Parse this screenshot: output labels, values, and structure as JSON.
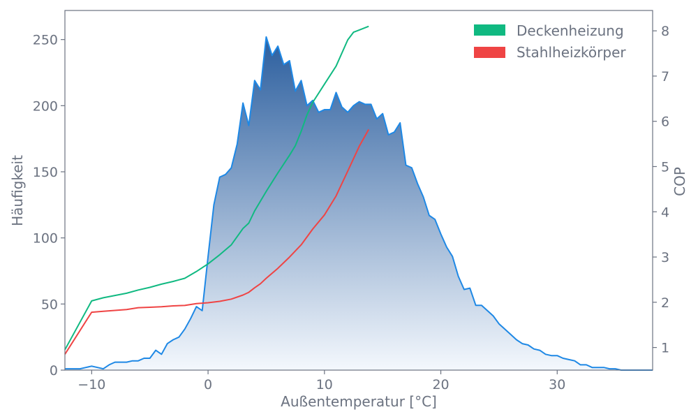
{
  "chart_data": {
    "type": "area",
    "title": "",
    "xlabel": "Außentemperatur [°C]",
    "ylabel": "Häufigkeit",
    "y2label": "COP",
    "xlim": [
      -12.3,
      38.2
    ],
    "ylim": [
      0,
      272
    ],
    "y2lim": [
      0.5,
      8.45
    ],
    "xticks": [
      -10,
      0,
      10,
      20,
      30
    ],
    "xtick_labels": [
      "−10",
      "0",
      "10",
      "20",
      "30"
    ],
    "yticks": [
      0,
      50,
      100,
      150,
      200,
      250
    ],
    "y2ticks": [
      1,
      2,
      3,
      4,
      5,
      6,
      7,
      8
    ],
    "grid": false,
    "legend_position": "top-right",
    "colors": {
      "area_top": "#2b5e9e",
      "area_bottom": "#f4f8fd",
      "frequency_line": "#1e88e5",
      "deckenheizung": "#10b981",
      "stahlheizkoerper": "#ef4444",
      "axis": "#6b7280"
    },
    "frequency": {
      "name": "Häufigkeit",
      "x": [
        -12.3,
        -12,
        -11.5,
        -11,
        -10.5,
        -10,
        -9.5,
        -9,
        -8.5,
        -8,
        -7.5,
        -7,
        -6.5,
        -6,
        -5.5,
        -5,
        -4.5,
        -4,
        -3.5,
        -3,
        -2.5,
        -2,
        -1.5,
        -1,
        -0.5,
        0,
        0.5,
        1,
        1.5,
        2,
        2.5,
        3,
        3.5,
        4,
        4.5,
        5,
        5.5,
        6,
        6.5,
        7,
        7.5,
        8,
        8.5,
        9,
        9.5,
        10,
        10.5,
        11,
        11.5,
        12,
        12.5,
        13,
        13.5,
        14,
        14.5,
        15,
        15.5,
        16,
        16.5,
        17,
        17.5,
        18,
        18.5,
        19,
        19.5,
        20,
        20.5,
        21,
        21.5,
        22,
        22.5,
        23,
        23.5,
        24,
        24.5,
        25,
        25.5,
        26,
        26.5,
        27,
        27.5,
        28,
        28.5,
        29,
        29.5,
        30,
        30.5,
        31,
        31.5,
        32,
        32.5,
        33,
        33.5,
        34,
        34.5,
        35,
        35.5,
        36,
        36.5,
        37,
        37.5,
        38,
        38.2
      ],
      "values": [
        1,
        1,
        1,
        1,
        2,
        3,
        2,
        1,
        4,
        6,
        6,
        6,
        7,
        7,
        9,
        9,
        15,
        12,
        20,
        23,
        25,
        31,
        39,
        48,
        45,
        86,
        125,
        146,
        148,
        153,
        171,
        202,
        185,
        219,
        212,
        252,
        238,
        245,
        231,
        234,
        211,
        219,
        200,
        204,
        195,
        197,
        197,
        210,
        199,
        195,
        200,
        203,
        201,
        201,
        190,
        194,
        178,
        180,
        187,
        155,
        153,
        141,
        131,
        117,
        114,
        103,
        93,
        86,
        71,
        61,
        62,
        49,
        49,
        45,
        41,
        35,
        31,
        27,
        23,
        20,
        19,
        16,
        15,
        12,
        11,
        11,
        9,
        8,
        7,
        4,
        4,
        2,
        2,
        2,
        1,
        1,
        0,
        0,
        0,
        0,
        0,
        0,
        0
      ]
    },
    "series": [
      {
        "name": "Deckenheizung",
        "x": [
          -12.3,
          -10,
          -9,
          -8,
          -7,
          -6,
          -5,
          -4,
          -3,
          -2,
          -1,
          0,
          1,
          2,
          3,
          3.5,
          4,
          5,
          6,
          7,
          7.5,
          8,
          8.5,
          9,
          10,
          11,
          12,
          12.5,
          13,
          13.8
        ],
        "values": [
          0.95,
          2.03,
          2.1,
          2.15,
          2.2,
          2.27,
          2.33,
          2.4,
          2.46,
          2.53,
          2.68,
          2.85,
          3.05,
          3.27,
          3.63,
          3.75,
          4.02,
          4.45,
          4.86,
          5.25,
          5.46,
          5.78,
          6.14,
          6.42,
          6.82,
          7.22,
          7.8,
          7.97,
          8.02,
          8.1
        ]
      },
      {
        "name": "Stahlheizkörper",
        "x": [
          -12.3,
          -10,
          -9,
          -8,
          -7,
          -6,
          -5,
          -4,
          -3,
          -2,
          -1,
          0,
          1,
          2,
          3,
          3.5,
          4,
          4.5,
          5,
          6,
          7,
          8,
          9,
          10,
          11,
          12,
          13,
          13.8
        ],
        "values": [
          0.85,
          1.78,
          1.8,
          1.82,
          1.84,
          1.88,
          1.89,
          1.9,
          1.92,
          1.93,
          1.97,
          1.99,
          2.02,
          2.07,
          2.16,
          2.22,
          2.32,
          2.41,
          2.53,
          2.75,
          3.0,
          3.27,
          3.62,
          3.93,
          4.35,
          4.9,
          5.45,
          5.82
        ]
      }
    ]
  }
}
